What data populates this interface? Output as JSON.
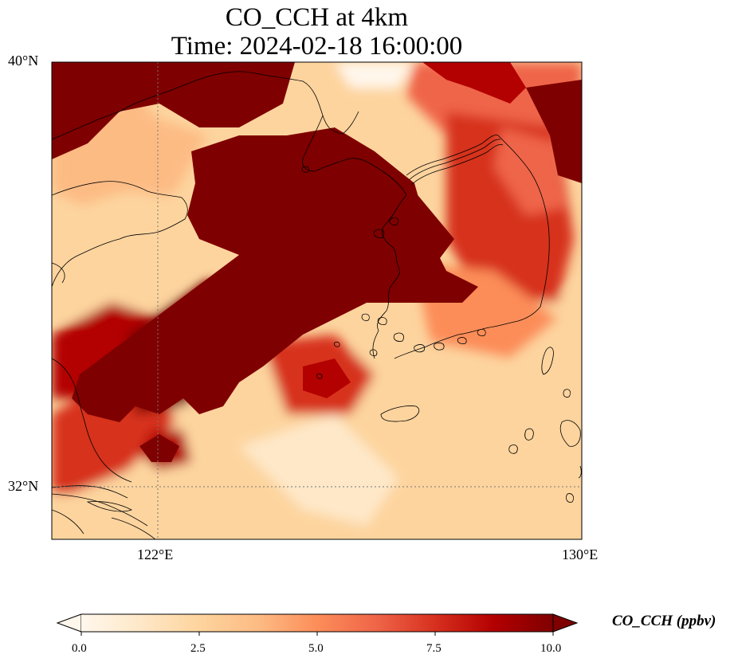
{
  "title": {
    "line1": "CO_CCH at 4km",
    "line2": "Time: 2024-02-18 16:00:00"
  },
  "map": {
    "lat_range": [
      31.0,
      40.0
    ],
    "lon_range": [
      120.0,
      130.0
    ],
    "gridlines": [
      {
        "type": "parallel",
        "value": 32,
        "label": "32°N"
      },
      {
        "type": "parallel",
        "value": 40,
        "label": "40°N"
      },
      {
        "type": "meridian",
        "value": 122,
        "label": "122°E"
      },
      {
        "type": "meridian",
        "value": 130,
        "label": "130°E"
      }
    ],
    "field": "CO_CCH",
    "features": [
      "coastline",
      "Shandong peninsula",
      "Liaodong peninsula",
      "Korean peninsula",
      "Jeju island",
      "Yangtze estuary",
      "Kyushu islands"
    ]
  },
  "colorbar": {
    "label": "CO_CCH (ppbv)",
    "colormap": "OrRd",
    "min": 0.0,
    "max": 10.0,
    "extend": "both",
    "ticks": [
      "0.0",
      "2.5",
      "5.0",
      "7.5",
      "10.0"
    ],
    "stops": [
      "#fff7ec",
      "#fee8c8",
      "#fdd49e",
      "#fdbb84",
      "#fc8d59",
      "#ef6548",
      "#d7301f",
      "#b30000",
      "#7f0000"
    ]
  }
}
